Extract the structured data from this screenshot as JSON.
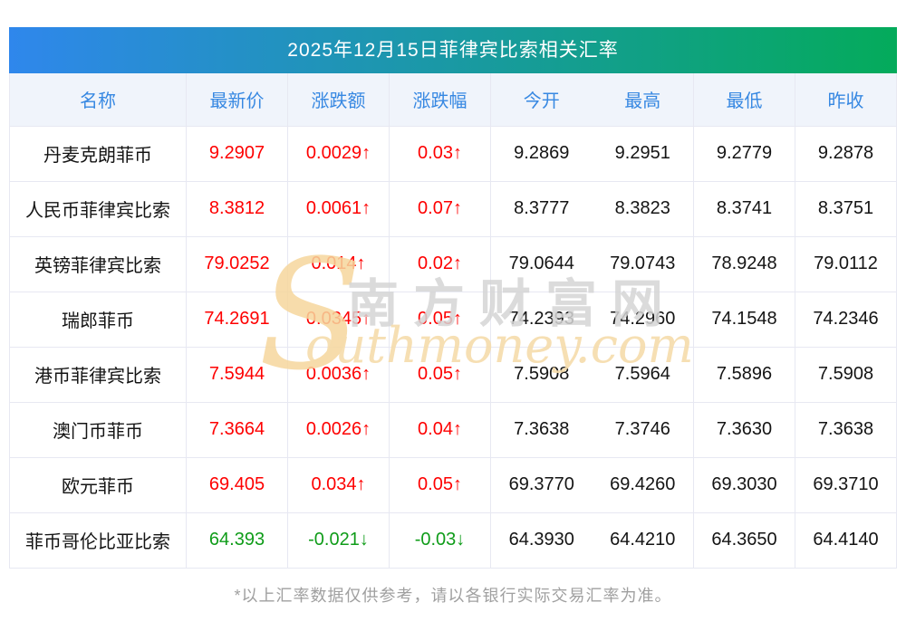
{
  "page": {
    "title_bar": "2025年12月15日菲律宾比索相关汇率",
    "footer_note": "*以上汇率数据仅供参考，请以各银行实际交易汇率为准。"
  },
  "colors": {
    "title_gradient_left": "#2F87EC",
    "title_gradient_right": "#04AB5B",
    "header_bg": "#F0F4FB",
    "header_text": "#3788E2",
    "up_red": "#FE0000",
    "down_green": "#0F9C19",
    "border": "#E7E8F2",
    "footer_gray": "#A0A0A0"
  },
  "watermark": {
    "cn": "南方财富网",
    "en_initial": "S",
    "en_rest": "outhmoney.com"
  },
  "table": {
    "columns": [
      "名称",
      "最新价",
      "涨跌额",
      "涨跌幅",
      "今开",
      "最高",
      "最低",
      "昨收"
    ],
    "rows": [
      {
        "name": "丹麦克朗菲币",
        "last": "9.2907",
        "change": "0.0029↑",
        "change_pct": "0.03↑",
        "open": "9.2869",
        "high": "9.2951",
        "low": "9.2779",
        "prev_close": "9.2878",
        "trend": "up"
      },
      {
        "name": "人民币菲律宾比索",
        "last": "8.3812",
        "change": "0.0061↑",
        "change_pct": "0.07↑",
        "open": "8.3777",
        "high": "8.3823",
        "low": "8.3741",
        "prev_close": "8.3751",
        "trend": "up"
      },
      {
        "name": "英镑菲律宾比索",
        "last": "79.0252",
        "change": "0.014↑",
        "change_pct": "0.02↑",
        "open": "79.0644",
        "high": "79.0743",
        "low": "78.9248",
        "prev_close": "79.0112",
        "trend": "up"
      },
      {
        "name": "瑞郎菲币",
        "last": "74.2691",
        "change": "0.0345↑",
        "change_pct": "0.05↑",
        "open": "74.2393",
        "high": "74.2960",
        "low": "74.1548",
        "prev_close": "74.2346",
        "trend": "up"
      },
      {
        "name": "港币菲律宾比索",
        "last": "7.5944",
        "change": "0.0036↑",
        "change_pct": "0.05↑",
        "open": "7.5908",
        "high": "7.5964",
        "low": "7.5896",
        "prev_close": "7.5908",
        "trend": "up"
      },
      {
        "name": "澳门币菲币",
        "last": "7.3664",
        "change": "0.0026↑",
        "change_pct": "0.04↑",
        "open": "7.3638",
        "high": "7.3746",
        "low": "7.3630",
        "prev_close": "7.3638",
        "trend": "up"
      },
      {
        "name": "欧元菲币",
        "last": "69.405",
        "change": "0.034↑",
        "change_pct": "0.05↑",
        "open": "69.3770",
        "high": "69.4260",
        "low": "69.3030",
        "prev_close": "69.3710",
        "trend": "up"
      },
      {
        "name": "菲币哥伦比亚比索",
        "last": "64.393",
        "change": "-0.021↓",
        "change_pct": "-0.03↓",
        "open": "64.3930",
        "high": "64.4210",
        "low": "64.3650",
        "prev_close": "64.4140",
        "trend": "down"
      }
    ]
  }
}
